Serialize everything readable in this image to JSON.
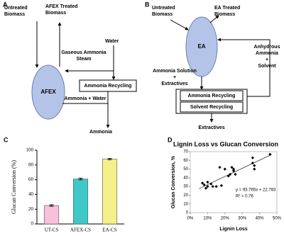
{
  "diagram_a": {
    "letter": "A",
    "untreated": [
      "Untreated",
      "Biomass"
    ],
    "treated": [
      "AFEX Treated",
      "Biomass"
    ],
    "water": [
      "Water"
    ],
    "steam": [
      "Gaseous Ammonia",
      "Steam"
    ],
    "reactor": [
      "AFEX"
    ],
    "recycling": [
      "Ammonia Recycling"
    ],
    "mix": [
      "Ammonia + Water"
    ],
    "ammonia": [
      "Ammonia"
    ]
  },
  "diagram_b": {
    "letter": "B",
    "untreated": [
      "Untreated",
      "Biomass"
    ],
    "treated": [
      "EA Treated",
      "Biomass"
    ],
    "reactor": [
      "EA"
    ],
    "solvent_in": [
      "Anhydrous",
      "Ammonia",
      "+",
      "Solvent"
    ],
    "solution": [
      "Ammonia Solution",
      "+",
      "Extractives"
    ],
    "ammonia_recycling": [
      "Ammonia Recycling"
    ],
    "solvent_recycling": [
      "Solvent Recycling"
    ],
    "extractives": [
      "Extractives"
    ]
  },
  "chart_data": [
    {
      "type": "bar",
      "letter": "C",
      "y_label": "Glucan Conversion (%)",
      "categories": [
        "UT-CS",
        "AFEX-CS",
        "EA-CS"
      ],
      "values": [
        25,
        61,
        88
      ],
      "errors": [
        1,
        1.2,
        1
      ],
      "colors": [
        "#f9c0dc",
        "#40c8c8",
        "#f5f08a"
      ],
      "ylim": [
        0,
        100
      ],
      "yticks": [
        0,
        20,
        40,
        60,
        80,
        100
      ]
    },
    {
      "type": "scatter",
      "letter": "D",
      "title": "Lignin Loss vs Glucan Conversion",
      "x_label": "Lignin Loss",
      "y_label": "Glucan Conversion, %",
      "color": "#000000",
      "x": [
        7,
        8,
        9,
        10,
        10,
        12,
        13,
        15,
        17,
        18,
        20,
        22,
        23,
        24,
        25,
        25,
        26,
        36,
        36,
        37,
        37,
        46
      ],
      "y": [
        34,
        32,
        28,
        30,
        35,
        33,
        30,
        30,
        52,
        31,
        50,
        42,
        44,
        52,
        48,
        50,
        44,
        63,
        57,
        50,
        54,
        67
      ],
      "trendline": {
        "x": [
          5,
          47
        ],
        "y": [
          27.5,
          66.8
        ]
      },
      "annotations": [
        "y = 93.765x + 22.783",
        "R² = 0.76"
      ],
      "xlim": [
        0,
        50
      ],
      "xticks": [
        {
          "value": 0,
          "label": "0%"
        },
        {
          "value": 10,
          "label": "10%"
        },
        {
          "value": 20,
          "label": "20%"
        },
        {
          "value": 30,
          "label": "30%"
        },
        {
          "value": 40,
          "label": "40%"
        },
        {
          "value": 50,
          "label": "50%"
        }
      ],
      "ylim": [
        0,
        70
      ],
      "yticks": [
        0,
        10,
        20,
        30,
        40,
        50,
        60,
        70
      ]
    }
  ]
}
